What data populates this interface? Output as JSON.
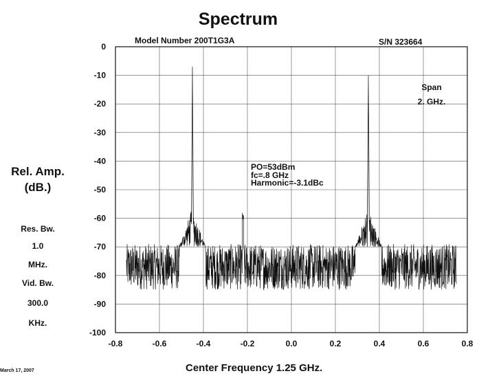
{
  "header": {
    "title": "Spectrum",
    "model": "Model Number 200T1G3A",
    "serial": "S/N 323664"
  },
  "side_panel": {
    "ylabel_line1": "Rel. Amp.",
    "ylabel_line2": "(dB.)",
    "res_bw_label": "Res. Bw.",
    "res_bw_value": "1.0",
    "res_bw_unit": "MHz.",
    "vid_bw_label": "Vid. Bw.",
    "vid_bw_value": "300.0",
    "vid_bw_unit": "KHz."
  },
  "footer": {
    "xlabel": "Center Frequency 1.25 GHz.",
    "date": "March 17, 2007"
  },
  "chart_data": {
    "type": "line",
    "title": "Spectrum",
    "xlabel": "Center Frequency 1.25 GHz.",
    "ylabel": "Rel. Amp. (dB.)",
    "xlim": [
      -0.8,
      0.8
    ],
    "ylim": [
      -100,
      0
    ],
    "x_ticks": [
      "-0.8",
      "-0.6",
      "-0.4",
      "-0.2",
      "0.0",
      "0.2",
      "0.4",
      "0.6",
      "0.8"
    ],
    "y_ticks": [
      "0",
      "-10",
      "-20",
      "-30",
      "-40",
      "-50",
      "-60",
      "-70",
      "-80",
      "-90",
      "-100"
    ],
    "grid": true,
    "trace_x_range": [
      -0.75,
      0.75
    ],
    "noise_floor": {
      "center": -77,
      "low": -85,
      "high": -69
    },
    "peaks": [
      {
        "x": -0.45,
        "y": -7
      },
      {
        "x": 0.35,
        "y": -10
      }
    ],
    "spur": {
      "x": -0.22,
      "y": -61
    },
    "annotations": {
      "span_line1": "Span",
      "span_line2": "2. GHz.",
      "po": "PO=53dBm",
      "fc": "fc=.8 GHz",
      "harmonic": "Harmonic=-3.1dBc"
    }
  }
}
